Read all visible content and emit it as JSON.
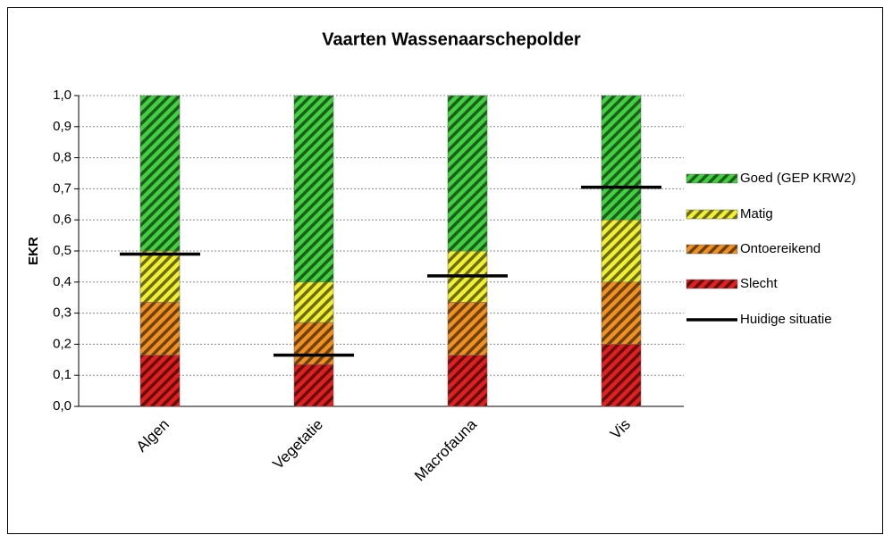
{
  "chart_data": {
    "type": "stacked_bar",
    "title": "Vaarten Wassenaarschepolder",
    "y_label": "EKR",
    "categories": [
      "Algen",
      "Vegetatie",
      "Macrofauna",
      "Vis"
    ],
    "series": [
      {
        "name": "Slecht",
        "color": "#e02020",
        "values": [
          0.165,
          0.135,
          0.165,
          0.2
        ]
      },
      {
        "name": "Ontoereikend",
        "color": "#f09020",
        "values": [
          0.17,
          0.135,
          0.17,
          0.2
        ]
      },
      {
        "name": "Matig",
        "color": "#f0f030",
        "values": [
          0.165,
          0.13,
          0.165,
          0.2
        ]
      },
      {
        "name": "Goed (GEP KRW2)",
        "color": "#40d040",
        "values": [
          0.5,
          0.6,
          0.5,
          0.4
        ]
      }
    ],
    "markers": {
      "name": "Huidige situatie",
      "color": "#000000",
      "values": [
        0.49,
        0.165,
        0.42,
        0.705
      ]
    },
    "ylim": [
      0,
      1
    ],
    "yticks": [
      {
        "value": 0,
        "label": "0,0"
      },
      {
        "value": 0.1,
        "label": "0,1"
      },
      {
        "value": 0.2,
        "label": "0,2"
      },
      {
        "value": 0.3,
        "label": "0,3"
      },
      {
        "value": 0.4,
        "label": "0,4"
      },
      {
        "value": 0.5,
        "label": "0,5"
      },
      {
        "value": 0.6,
        "label": "0,6"
      },
      {
        "value": 0.7,
        "label": "0,7"
      },
      {
        "value": 0.8,
        "label": "0,8"
      },
      {
        "value": 0.9,
        "label": "0,9"
      },
      {
        "value": 1,
        "label": "1,0"
      }
    ],
    "grid": true,
    "legend": "right"
  }
}
